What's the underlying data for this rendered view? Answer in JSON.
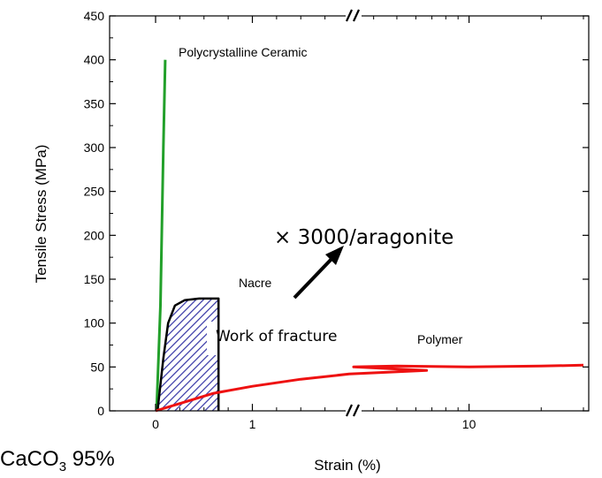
{
  "chart_data": {
    "type": "line",
    "xlabel": "Strain (%)",
    "ylabel": "Tensile Stress (MPa)",
    "ylim": [
      0,
      450
    ],
    "yticks": [
      0,
      50,
      100,
      150,
      200,
      250,
      300,
      350,
      400,
      450
    ],
    "x_axis_note": "broken axis (//) between linear segment and logarithmic segment",
    "xticks": [
      {
        "label": "0",
        "value": 0
      },
      {
        "label": "1",
        "value": 1
      },
      {
        "label": "10",
        "value": 10
      }
    ],
    "series": [
      {
        "name": "Polycrystalline Ceramic",
        "color": "#22a02a",
        "points": [
          [
            0.01,
            0
          ],
          [
            0.05,
            120
          ],
          [
            0.08,
            300
          ],
          [
            0.1,
            400
          ]
        ]
      },
      {
        "name": "Nacre",
        "color": "#000000",
        "points": [
          [
            0.02,
            0
          ],
          [
            0.08,
            60
          ],
          [
            0.13,
            100
          ],
          [
            0.2,
            120
          ],
          [
            0.3,
            126
          ],
          [
            0.45,
            128
          ],
          [
            0.62,
            128
          ],
          [
            0.65,
            128
          ],
          [
            0.65,
            0
          ]
        ]
      },
      {
        "name": "Polymer",
        "color": "#ee1111",
        "points": [
          [
            0,
            0
          ],
          [
            0.3,
            10
          ],
          [
            0.6,
            20
          ],
          [
            1.0,
            28
          ],
          [
            1.5,
            36
          ],
          [
            2.0,
            42
          ],
          [
            2.8,
            46
          ],
          [
            3.3,
            50
          ],
          [
            5,
            51
          ],
          [
            10,
            50
          ],
          [
            20,
            51
          ],
          [
            30,
            52
          ]
        ]
      }
    ],
    "annotations": [
      {
        "text": "Polycrystalline Ceramic"
      },
      {
        "text": "Nacre"
      },
      {
        "text": "Work of fracture"
      },
      {
        "text": "× 3000/aragonite"
      },
      {
        "text": "Polymer"
      }
    ],
    "footnote": {
      "prefix": "CaCO",
      "subscript": "3",
      "suffix": " 95%"
    },
    "colors": {
      "hatch": "#3a3aa8",
      "axis": "#000000"
    }
  }
}
